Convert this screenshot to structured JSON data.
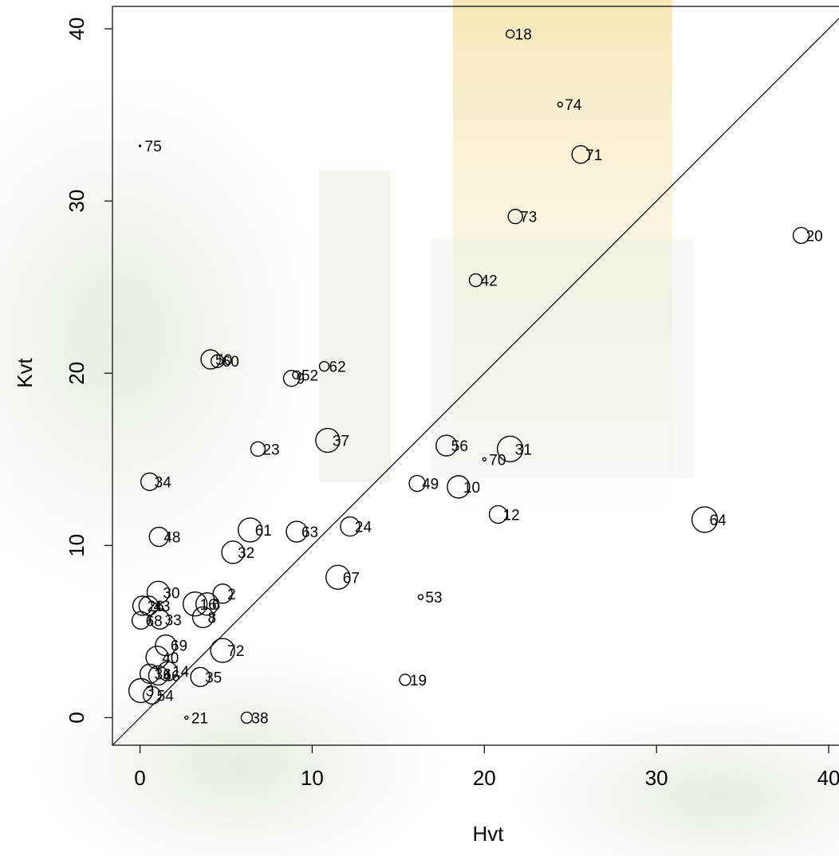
{
  "chart_data": {
    "type": "scatter",
    "x_label": "Hvt",
    "y_label": "Kvt",
    "xlim": [
      -1.6,
      40.6
    ],
    "ylim": [
      -1.6,
      41.3
    ],
    "xticks": [
      0,
      10,
      20,
      30,
      40
    ],
    "yticks": [
      0,
      10,
      20,
      30,
      40
    ],
    "color": "#000000",
    "labels": [
      "18",
      "74",
      "75",
      "71",
      "73",
      "20",
      "42",
      "50",
      "60",
      "62",
      "9",
      "52",
      "23",
      "37",
      "56",
      "31",
      "70",
      "34",
      "49",
      "10",
      "12",
      "64",
      "61",
      "63",
      "24",
      "48",
      "32",
      "67",
      "53",
      "30",
      "2",
      "16",
      "6",
      "8",
      "26",
      "43",
      "33",
      "68",
      "69",
      "40",
      "72",
      "14",
      "36",
      "46",
      "35",
      "3",
      "54",
      "19",
      "21",
      "38"
    ],
    "x": [
      21.5,
      24.4,
      0,
      25.6,
      21.8,
      38.4,
      19.5,
      4.1,
      4.5,
      10.7,
      8.8,
      9.1,
      6.85,
      10.9,
      17.8,
      21.5,
      20,
      0.56,
      16.1,
      18.5,
      20.8,
      32.8,
      6.4,
      9.1,
      12.2,
      1.1,
      5.4,
      11.5,
      16.3,
      1.06,
      4.8,
      3.2,
      3.9,
      3.66,
      0.14,
      0.5,
      1.16,
      0.05,
      1.5,
      1.0,
      4.8,
      1.6,
      0.56,
      1.06,
      3.5,
      0.05,
      0.7,
      15.4,
      2.7,
      6.2
    ],
    "values": [
      39.7,
      35.6,
      33.2,
      32.7,
      29.1,
      28.0,
      25.4,
      20.8,
      20.7,
      20.4,
      19.7,
      19.9,
      15.6,
      16.1,
      15.8,
      15.6,
      15.0,
      13.7,
      13.6,
      13.4,
      11.8,
      11.5,
      10.9,
      10.8,
      11.1,
      10.5,
      9.6,
      8.15,
      7.0,
      7.27,
      7.2,
      6.6,
      6.6,
      5.83,
      6.5,
      6.5,
      5.7,
      5.65,
      4.2,
      3.5,
      3.9,
      2.7,
      2.55,
      2.45,
      2.36,
      1.57,
      1.3,
      2.2,
      0,
      0
    ],
    "sizes": [
      5,
      3,
      1,
      11,
      9,
      10,
      8,
      12,
      8,
      6,
      10,
      5,
      9,
      15,
      13,
      16,
      2,
      11,
      10,
      14,
      11,
      16,
      15,
      13,
      12,
      12,
      14,
      15,
      3,
      14,
      12,
      15,
      14,
      13,
      12,
      12,
      12,
      11,
      13,
      14,
      15,
      12,
      12,
      12,
      12,
      15,
      11,
      7,
      2,
      7
    ]
  }
}
